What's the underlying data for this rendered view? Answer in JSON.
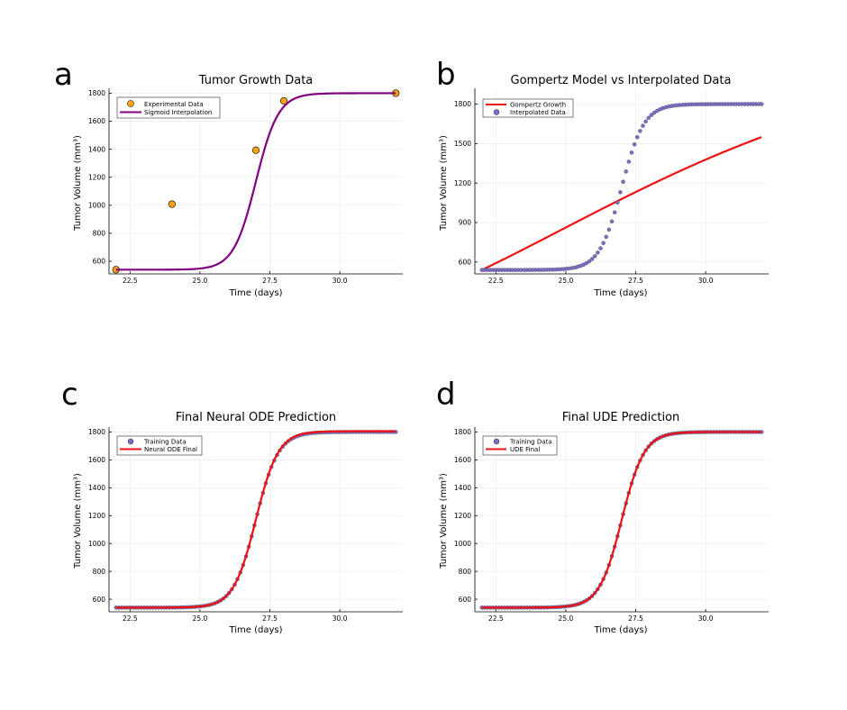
{
  "figure": {
    "panels": [
      {
        "letter": "a"
      },
      {
        "letter": "b"
      },
      {
        "letter": "c"
      },
      {
        "letter": "d"
      }
    ]
  },
  "colors": {
    "orange": "#f5a314",
    "purple": "#800080",
    "red": "#ee1111",
    "slate": "#7a6fc4"
  },
  "chart_data": [
    {
      "type": "scatter",
      "title": "Tumor Growth Data",
      "xlabel": "Time (days)",
      "ylabel": "Tumor Volume (mm³)",
      "xlim": [
        21.75,
        32.25
      ],
      "ylim": [
        510,
        1835
      ],
      "xticks": [
        22.5,
        25.0,
        27.5,
        30.0
      ],
      "yticks": [
        600,
        800,
        1000,
        1200,
        1400,
        1600,
        1800
      ],
      "grid": true,
      "legend": "top-left",
      "series": [
        {
          "name": "Experimental Data",
          "kind": "points",
          "color": "#f5a314",
          "marker": "large",
          "x": [
            22,
            24,
            27,
            28,
            32
          ],
          "y": [
            540,
            1008,
            1393,
            1745,
            1800
          ]
        },
        {
          "name": "Sigmoid Interpolation",
          "kind": "line",
          "color": "#800080",
          "fn": {
            "model": "logistic",
            "x0": 22,
            "x1": 32,
            "n": 120,
            "lo": 540,
            "hi": 1800,
            "mid": 27.0,
            "k": 2.5
          }
        }
      ]
    },
    {
      "type": "line",
      "title": "Gompertz Model vs Interpolated Data",
      "xlabel": "Time (days)",
      "ylabel": "Tumor Volume (mm³)",
      "xlim": [
        21.75,
        32.25
      ],
      "ylim": [
        510,
        1920
      ],
      "xticks": [
        22.5,
        25.0,
        27.5,
        30.0
      ],
      "yticks": [
        600,
        900,
        1200,
        1500,
        1800
      ],
      "grid": true,
      "legend": "top-left",
      "series": [
        {
          "name": "Gompertz Growth",
          "kind": "line",
          "color": "#ee1111",
          "fn": {
            "model": "gompertz",
            "x0": 22,
            "x1": 32,
            "n": 120,
            "V0": 540,
            "K": 2300,
            "r": 0.13
          }
        },
        {
          "name": "Interpolated Data",
          "kind": "points",
          "color": "#7a6fc4",
          "marker": "small",
          "fn": {
            "model": "logistic",
            "x0": 22,
            "x1": 32,
            "n": 100,
            "lo": 540,
            "hi": 1800,
            "mid": 27.0,
            "k": 2.5
          }
        }
      ]
    },
    {
      "type": "line",
      "title": "Final Neural ODE Prediction",
      "xlabel": "Time (days)",
      "ylabel": "Tumor Volume (mm³)",
      "xlim": [
        21.75,
        32.25
      ],
      "ylim": [
        510,
        1835
      ],
      "xticks": [
        22.5,
        25.0,
        27.5,
        30.0
      ],
      "yticks": [
        600,
        800,
        1000,
        1200,
        1400,
        1600,
        1800
      ],
      "grid": true,
      "legend": "top-left",
      "series": [
        {
          "name": "Training Data",
          "kind": "points",
          "color": "#7a6fc4",
          "marker": "small",
          "fn": {
            "model": "logistic",
            "x0": 22,
            "x1": 32,
            "n": 100,
            "lo": 540,
            "hi": 1800,
            "mid": 27.0,
            "k": 2.5
          }
        },
        {
          "name": "Neural ODE Final",
          "kind": "line",
          "color": "#ee1111",
          "fn": {
            "model": "logistic",
            "x0": 22,
            "x1": 32,
            "n": 120,
            "lo": 540,
            "hi": 1805,
            "mid": 27.0,
            "k": 2.5
          }
        }
      ]
    },
    {
      "type": "line",
      "title": "Final UDE Prediction",
      "xlabel": "Time (days)",
      "ylabel": "Tumor Volume (mm³)",
      "xlim": [
        21.75,
        32.25
      ],
      "ylim": [
        510,
        1835
      ],
      "xticks": [
        22.5,
        25.0,
        27.5,
        30.0
      ],
      "yticks": [
        600,
        800,
        1000,
        1200,
        1400,
        1600,
        1800
      ],
      "grid": true,
      "legend": "top-left",
      "series": [
        {
          "name": "Training Data",
          "kind": "points",
          "color": "#7a6fc4",
          "marker": "small",
          "fn": {
            "model": "logistic",
            "x0": 22,
            "x1": 32,
            "n": 100,
            "lo": 540,
            "hi": 1800,
            "mid": 27.0,
            "k": 2.5
          }
        },
        {
          "name": "UDE Final",
          "kind": "line",
          "color": "#ee1111",
          "fn": {
            "model": "logistic",
            "x0": 22,
            "x1": 32,
            "n": 120,
            "lo": 540,
            "hi": 1800,
            "mid": 27.0,
            "k": 2.5
          }
        }
      ]
    }
  ]
}
